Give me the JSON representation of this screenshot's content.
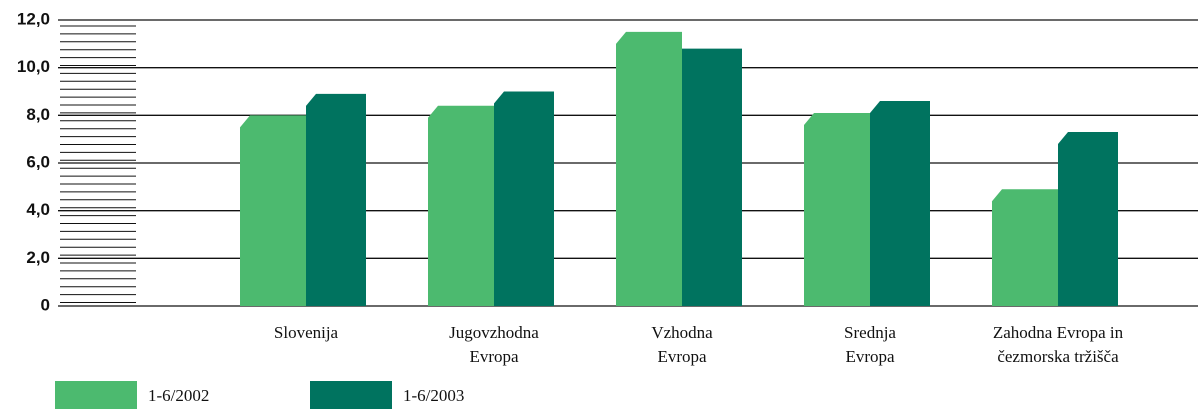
{
  "chart_data": {
    "type": "bar",
    "categories": [
      [
        "Slovenija"
      ],
      [
        "Jugovzhodna",
        "Evropa"
      ],
      [
        "Vzhodna",
        "Evropa"
      ],
      [
        "Srednja",
        "Evropa"
      ],
      [
        "Zahodna Evropa in",
        "čezmorska tržišča"
      ]
    ],
    "series": [
      {
        "name": "1-6/2002",
        "color": "#4cba6f",
        "values": [
          8.0,
          8.4,
          11.5,
          8.1,
          4.9
        ]
      },
      {
        "name": "1-6/2003",
        "color": "#00735f",
        "values": [
          8.9,
          9.0,
          10.8,
          8.6,
          7.3
        ]
      }
    ],
    "ylim": [
      0,
      12
    ],
    "yticks": [
      0,
      {
        "value": 2,
        "label": "2,0"
      },
      {
        "value": 4,
        "label": "4,0"
      },
      {
        "value": 6,
        "label": "6,0"
      },
      {
        "value": 8,
        "label": "8,0"
      },
      {
        "value": 10,
        "label": "10,0"
      },
      {
        "value": 12,
        "label": "12,0"
      }
    ],
    "grid": true
  }
}
